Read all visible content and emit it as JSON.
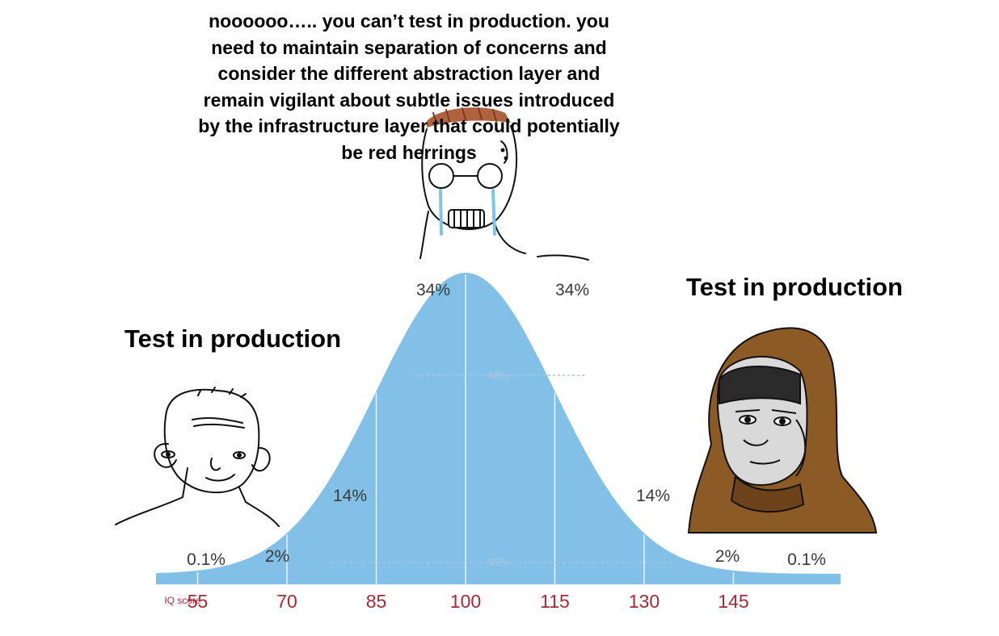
{
  "captions": {
    "middle": "noooooo….. you can’t test in production. you need to maintain separation of concerns and consider the different abstraction layer and remain vigilant about subtle issues introduced by the infrastructure layer that could potentially be red herrings",
    "left": "Test in production",
    "right": "Test in production"
  },
  "chart_data": {
    "type": "area",
    "xlabel": "IQ score",
    "x_ticks": [
      "55",
      "70",
      "85",
      "100",
      "115",
      "130",
      "145"
    ],
    "mean": 100,
    "sd": 15,
    "region_labels": [
      "0.1%",
      "2%",
      "14%",
      "34%",
      "34%",
      "14%",
      "2%",
      "0.1%"
    ],
    "inner_labels": [
      "68%",
      "95%"
    ],
    "colors": {
      "fill": "#83c0e8",
      "tick_text": "#a52a35"
    }
  },
  "characters": [
    {
      "name": "simple-wojak-icon"
    },
    {
      "name": "crying-nerd-wojak-icon"
    },
    {
      "name": "hooded-wojak-icon"
    }
  ]
}
